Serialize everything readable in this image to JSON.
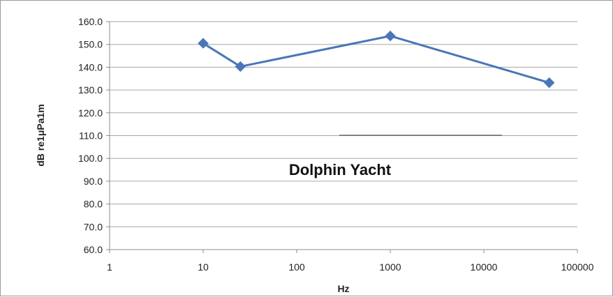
{
  "chart_data": {
    "type": "line",
    "title": "",
    "xlabel": "Hz",
    "ylabel": "dB re1μPa1m",
    "xscale": "log",
    "xlim": [
      1,
      100000
    ],
    "ylim": [
      60,
      160
    ],
    "grid": "horizontal",
    "legend": "none",
    "x_tick_labels": [
      "1",
      "10",
      "100",
      "1000",
      "10000",
      "100000"
    ],
    "y_tick_labels": [
      "60.0",
      "70.0",
      "80.0",
      "90.0",
      "100.0",
      "110.0",
      "120.0",
      "130.0",
      "140.0",
      "150.0",
      "160.0"
    ],
    "series": [
      {
        "x": [
          10,
          25,
          1000,
          50000
        ],
        "y": [
          150.5,
          140.3,
          153.7,
          133.2
        ],
        "color": "#4a76b8",
        "marker": "diamond"
      }
    ],
    "annotation": "Dolphin Yacht"
  }
}
